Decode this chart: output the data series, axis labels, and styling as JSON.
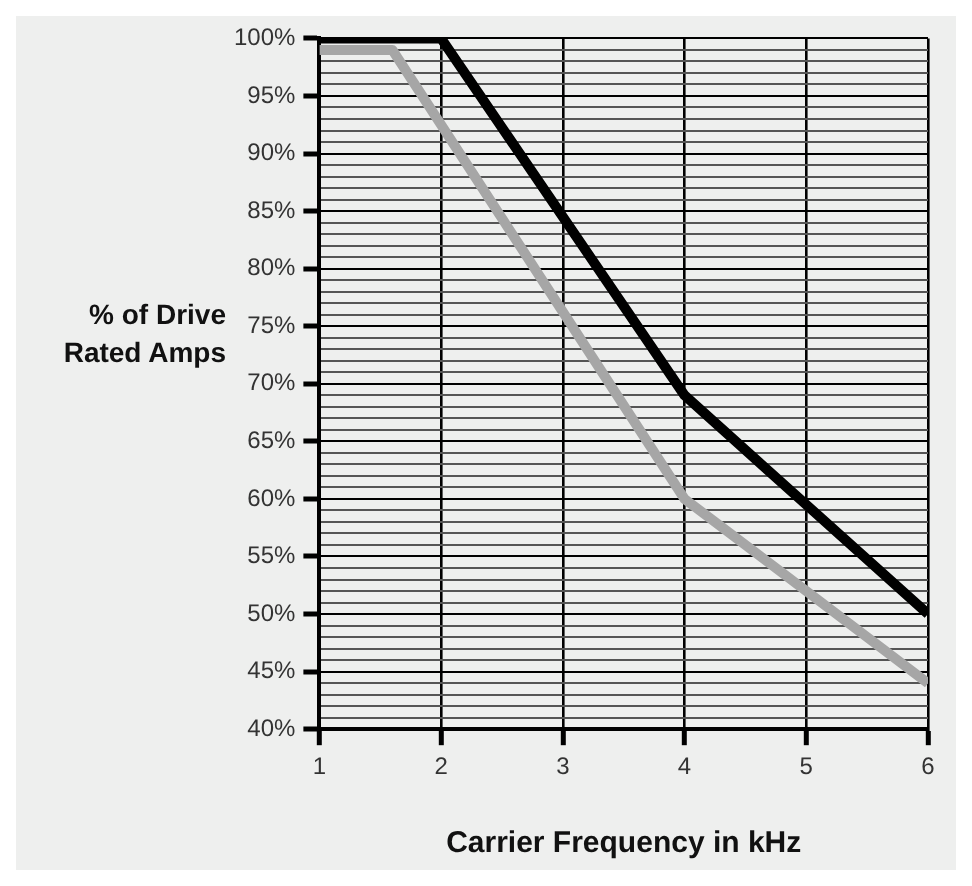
{
  "chart_data": {
    "type": "line",
    "xlabel": "Carrier Frequency in kHz",
    "ylabel": "% of Drive\nRated Amps",
    "xlim": [
      1,
      6
    ],
    "xticks": [
      1,
      2,
      3,
      4,
      5,
      6
    ],
    "ylim": [
      40,
      100
    ],
    "yticks": [
      {
        "value": 40,
        "label": "40%"
      },
      {
        "value": 41,
        "label": null
      },
      {
        "value": 42,
        "label": null
      },
      {
        "value": 43,
        "label": null
      },
      {
        "value": 44,
        "label": null
      },
      {
        "value": 45,
        "label": "45%"
      },
      {
        "value": 46,
        "label": null
      },
      {
        "value": 47,
        "label": null
      },
      {
        "value": 48,
        "label": null
      },
      {
        "value": 49,
        "label": null
      },
      {
        "value": 50,
        "label": "50%"
      },
      {
        "value": 51,
        "label": null
      },
      {
        "value": 52,
        "label": null
      },
      {
        "value": 53,
        "label": null
      },
      {
        "value": 54,
        "label": null
      },
      {
        "value": 55,
        "label": "55%"
      },
      {
        "value": 56,
        "label": null
      },
      {
        "value": 57,
        "label": null
      },
      {
        "value": 58,
        "label": null
      },
      {
        "value": 59,
        "label": null
      },
      {
        "value": 60,
        "label": "60%"
      },
      {
        "value": 61,
        "label": null
      },
      {
        "value": 62,
        "label": null
      },
      {
        "value": 63,
        "label": null
      },
      {
        "value": 64,
        "label": null
      },
      {
        "value": 65,
        "label": "65%"
      },
      {
        "value": 66,
        "label": null
      },
      {
        "value": 67,
        "label": null
      },
      {
        "value": 68,
        "label": null
      },
      {
        "value": 69,
        "label": null
      },
      {
        "value": 70,
        "label": "70%"
      },
      {
        "value": 71,
        "label": null
      },
      {
        "value": 72,
        "label": null
      },
      {
        "value": 73,
        "label": null
      },
      {
        "value": 74,
        "label": null
      },
      {
        "value": 75,
        "label": "75%"
      },
      {
        "value": 76,
        "label": null
      },
      {
        "value": 77,
        "label": null
      },
      {
        "value": 78,
        "label": null
      },
      {
        "value": 79,
        "label": null
      },
      {
        "value": 80,
        "label": "80%"
      },
      {
        "value": 81,
        "label": null
      },
      {
        "value": 82,
        "label": null
      },
      {
        "value": 83,
        "label": null
      },
      {
        "value": 84,
        "label": null
      },
      {
        "value": 85,
        "label": "85%"
      },
      {
        "value": 86,
        "label": null
      },
      {
        "value": 87,
        "label": null
      },
      {
        "value": 88,
        "label": null
      },
      {
        "value": 89,
        "label": null
      },
      {
        "value": 90,
        "label": "90%"
      },
      {
        "value": 91,
        "label": null
      },
      {
        "value": 92,
        "label": null
      },
      {
        "value": 93,
        "label": null
      },
      {
        "value": 94,
        "label": null
      },
      {
        "value": 95,
        "label": "95%"
      },
      {
        "value": 96,
        "label": null
      },
      {
        "value": 97,
        "label": null
      },
      {
        "value": 98,
        "label": null
      },
      {
        "value": 99,
        "label": null
      },
      {
        "value": 100,
        "label": "100%"
      }
    ],
    "grid": true,
    "legend": false,
    "marker": "none",
    "line_style": "solid",
    "series": [
      {
        "color": "#a6a6a6",
        "x": [
          1,
          1.6,
          4,
          6
        ],
        "values": [
          99,
          99,
          60,
          44
        ]
      },
      {
        "color": "#000000",
        "x": [
          1,
          2,
          4,
          6
        ],
        "values": [
          100,
          100,
          69,
          50
        ]
      }
    ]
  }
}
